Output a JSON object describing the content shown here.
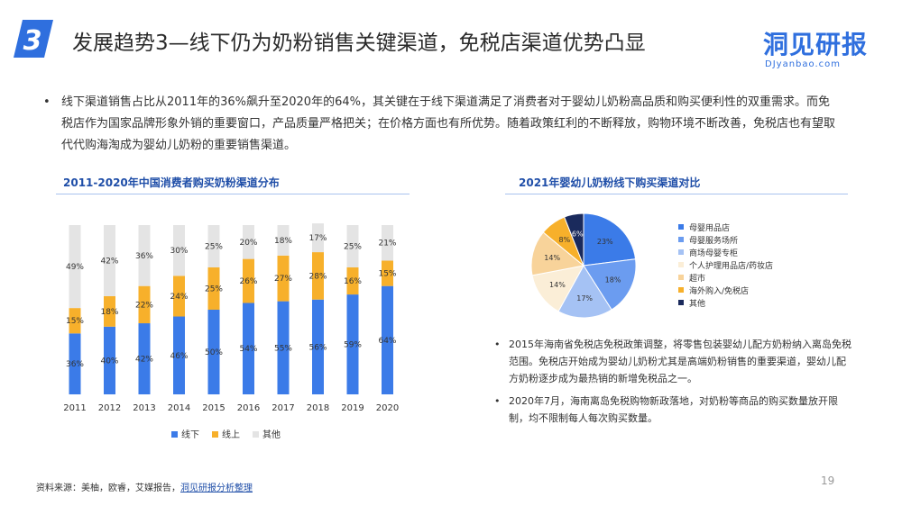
{
  "header": {
    "number": "3",
    "title": "发展趋势3—线下仍为奶粉销售关键渠道，免税店渠道优势凸显",
    "brand_main": "洞见研报",
    "brand_url": "DJyanbao.com"
  },
  "intro": {
    "bullet": "•",
    "text": "线下渠道销售占比从2011年的36%飙升至2020年的64%，其关键在于线下渠道满足了消费者对于婴幼儿奶粉高品质和购买便利性的双重需求。而免税店作为国家品牌形象外销的重要窗口，产品质量严格把关；在价格方面也有所优势。随着政策红利的不断释放，购物环境不断改善，免税店也有望取代代购海淘成为婴幼儿奶粉的重要销售渠道。"
  },
  "bar_section": {
    "title": "2011-2020年中国消费者购买奶粉渠道分布"
  },
  "pie_section": {
    "title": "2021年婴幼儿奶粉线下购买渠道对比"
  },
  "chart_data": [
    {
      "type": "bar",
      "stacked": true,
      "title": "2011-2020年中国消费者购买奶粉渠道分布",
      "categories": [
        "2011",
        "2012",
        "2013",
        "2014",
        "2015",
        "2016",
        "2017",
        "2018",
        "2019",
        "2020"
      ],
      "series": [
        {
          "name": "线下",
          "color": "#3b7be8",
          "values": [
            36,
            40,
            42,
            46,
            50,
            54,
            55,
            56,
            59,
            64
          ]
        },
        {
          "name": "线上",
          "color": "#f7b02b",
          "values": [
            15,
            18,
            22,
            24,
            25,
            26,
            27,
            28,
            16,
            15
          ]
        },
        {
          "name": "其他",
          "color": "#e4e4e4",
          "values": [
            49,
            42,
            36,
            30,
            25,
            20,
            18,
            17,
            25,
            21
          ]
        }
      ],
      "value_format": "{v}%",
      "ylim": [
        0,
        100
      ],
      "legend": "bottom",
      "grid": false
    },
    {
      "type": "pie",
      "title": "2021年婴幼儿奶粉线下购买渠道对比",
      "slices": [
        {
          "name": "母婴用品店",
          "value": 23,
          "label": "23%",
          "color": "#3b7be8"
        },
        {
          "name": "母婴服务场所",
          "value": 18,
          "label": "18%",
          "color": "#6b9cf0"
        },
        {
          "name": "商场母婴专柜",
          "value": 17,
          "label": "17%",
          "color": "#a5c2f4"
        },
        {
          "name": "个人护理用品店/药妆店",
          "value": 14,
          "label": "14%",
          "color": "#fbeed7"
        },
        {
          "name": "超市",
          "value": 14,
          "label": "14%",
          "color": "#f8d39a"
        },
        {
          "name": "海外购入/免税店",
          "value": 8,
          "label": "8%",
          "color": "#f7b02b"
        },
        {
          "name": "其他",
          "value": 6,
          "label": "6%",
          "color": "#1a2a5c"
        }
      ],
      "legend": "right"
    }
  ],
  "notes": [
    {
      "bullet": "•",
      "text": "2015年海南省免税店免税政策调整，将零售包装婴幼儿配方奶粉纳入离岛免税范围。免税店开始成为婴幼儿奶粉尤其是高端奶粉销售的重要渠道，婴幼儿配方奶粉逐步成为最热销的新增免税品之一。"
    },
    {
      "bullet": "•",
      "text": "2020年7月，海南离岛免税购物新政落地，对奶粉等商品的购买数量放开限制，均不限制每人每次购买数量。"
    }
  ],
  "footer": {
    "source_prefix": "资料来源：美柚，欧睿，艾媒报告，",
    "source_link": "洞见研报分析整理",
    "page_number": "19"
  }
}
